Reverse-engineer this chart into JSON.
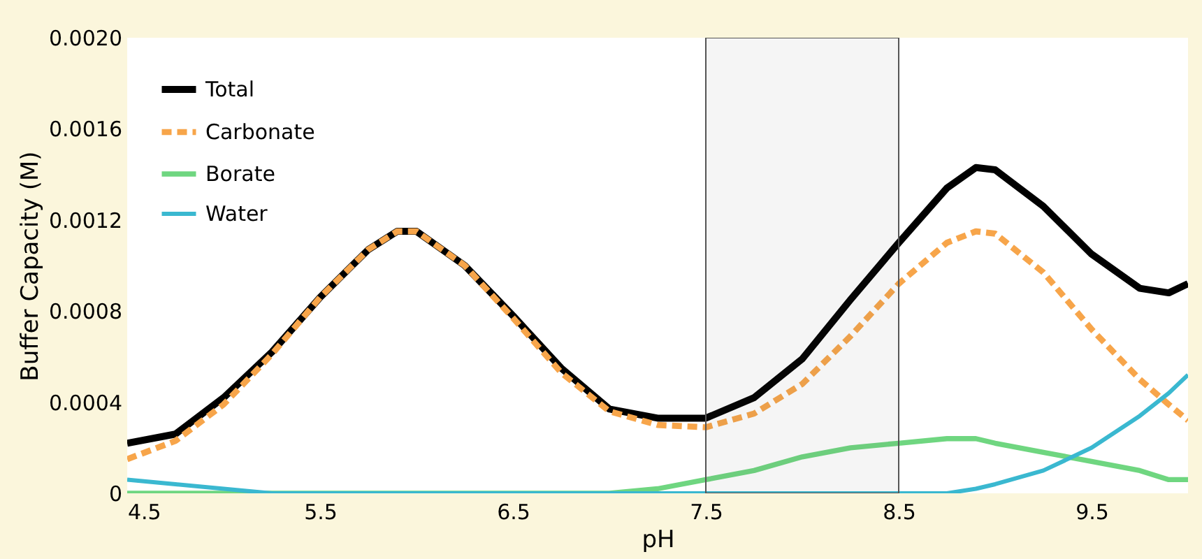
{
  "chart_data": {
    "type": "line",
    "xlabel": "pH",
    "ylabel": "Buffer Capacity (M)",
    "x": [
      4.5,
      4.75,
      5.0,
      5.25,
      5.5,
      5.75,
      5.9,
      6.0,
      6.25,
      6.5,
      6.75,
      7.0,
      7.25,
      7.5,
      7.75,
      8.0,
      8.25,
      8.5,
      8.75,
      8.9,
      9.0,
      9.25,
      9.5,
      9.75,
      9.9,
      10.0
    ],
    "series": [
      {
        "name": "Total",
        "color": "#000000",
        "line_style": "solid",
        "values": [
          0.00022,
          0.00026,
          0.00042,
          0.00062,
          0.00086,
          0.00107,
          0.00115,
          0.00115,
          0.001,
          0.00078,
          0.00055,
          0.00037,
          0.00033,
          0.00033,
          0.00042,
          0.00059,
          0.00085,
          0.0011,
          0.00134,
          0.00143,
          0.00142,
          0.00126,
          0.00105,
          0.0009,
          0.00088,
          0.00092
        ]
      },
      {
        "name": "Carbonate",
        "color": "#f7a54a",
        "line_style": "dashed",
        "values": [
          0.00015,
          0.00023,
          0.00039,
          0.00061,
          0.00086,
          0.00107,
          0.00115,
          0.00115,
          0.001,
          0.00077,
          0.00053,
          0.00036,
          0.0003,
          0.00029,
          0.00035,
          0.00048,
          0.00069,
          0.00092,
          0.0011,
          0.00115,
          0.00114,
          0.00097,
          0.00072,
          0.0005,
          0.00039,
          0.00032
        ]
      },
      {
        "name": "Borate",
        "color": "#6fd680",
        "line_style": "solid",
        "values": [
          0,
          0,
          0,
          0,
          0,
          0,
          0,
          0,
          0,
          0,
          0,
          0,
          2e-05,
          6e-05,
          0.0001,
          0.00016,
          0.0002,
          0.00022,
          0.00024,
          0.00024,
          0.00022,
          0.00018,
          0.00014,
          0.0001,
          6e-05,
          6e-05
        ]
      },
      {
        "name": "Water",
        "color": "#3ab8d0",
        "line_style": "solid",
        "values": [
          6e-05,
          4e-05,
          2e-05,
          0,
          0,
          0,
          0,
          0,
          0,
          0,
          0,
          0,
          0,
          0,
          0,
          0,
          0,
          0,
          0,
          2e-05,
          4e-05,
          0.0001,
          0.0002,
          0.00034,
          0.00044,
          0.00052
        ]
      }
    ],
    "xlim": [
      4.5,
      10.0
    ],
    "xticks": [
      4.5,
      5.5,
      6.5,
      7.5,
      8.5,
      9.5
    ],
    "ylim": [
      0,
      0.002
    ],
    "yticks": [
      {
        "value": 0,
        "label": "0"
      },
      0.0004,
      0.0008,
      0.0012,
      0.0016,
      {
        "value": 0.002,
        "label": "0.0020"
      }
    ],
    "bands": [
      {
        "axis": "x",
        "from": 7.5,
        "to": 8.5,
        "color": "#555555"
      }
    ],
    "grid": false,
    "legend": "top left"
  }
}
